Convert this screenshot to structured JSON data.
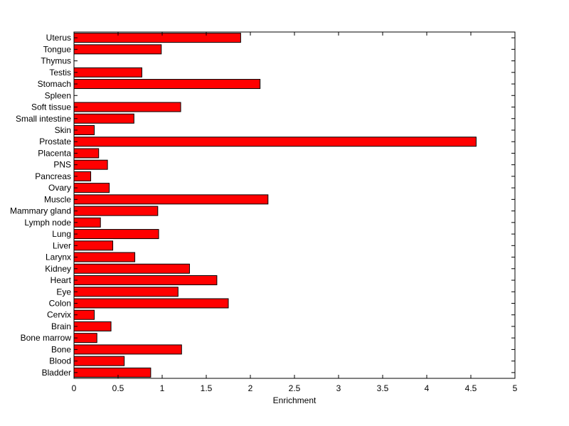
{
  "chart_data": {
    "type": "bar",
    "orientation": "horizontal",
    "title": "",
    "xlabel": "Enrichment",
    "ylabel": "",
    "xlim": [
      0,
      5
    ],
    "xticks": [
      "0",
      "0.5",
      "1",
      "1.5",
      "2",
      "2.5",
      "3",
      "3.5",
      "4",
      "4.5",
      "5"
    ],
    "grid": false,
    "bar_color": "#ff0000",
    "categories": [
      "Uterus",
      "Tongue",
      "Thymus",
      "Testis",
      "Stomach",
      "Spleen",
      "Soft tissue",
      "Small intestine",
      "Skin",
      "Prostate",
      "Placenta",
      "PNS",
      "Pancreas",
      "Ovary",
      "Muscle",
      "Mammary gland",
      "Lymph node",
      "Lung",
      "Liver",
      "Larynx",
      "Kidney",
      "Heart",
      "Eye",
      "Colon",
      "Cervix",
      "Brain",
      "Bone marrow",
      "Bone",
      "Blood",
      "Bladder"
    ],
    "values": [
      1.89,
      0.99,
      0.0,
      0.77,
      2.11,
      0.0,
      1.21,
      0.68,
      0.23,
      4.56,
      0.28,
      0.38,
      0.19,
      0.4,
      2.2,
      0.95,
      0.3,
      0.96,
      0.44,
      0.69,
      1.31,
      1.62,
      1.18,
      1.75,
      0.23,
      0.42,
      0.26,
      1.22,
      0.57,
      0.87
    ]
  }
}
